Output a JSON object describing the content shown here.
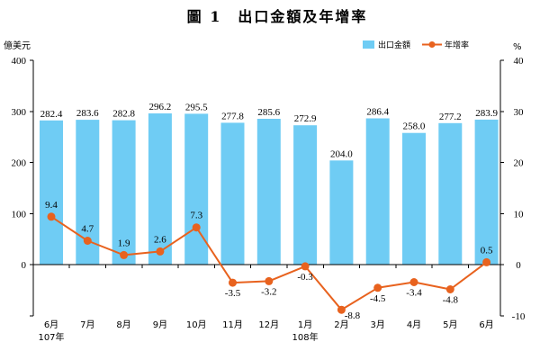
{
  "chart_data": {
    "type": "bar",
    "title": "圖 1　出口金額及年增率",
    "categories": [
      "6月",
      "7月",
      "8月",
      "9月",
      "10月",
      "11月",
      "12月",
      "1月",
      "2月",
      "3月",
      "4月",
      "5月",
      "6月"
    ],
    "category_year_labels": [
      "107年",
      "",
      "",
      "",
      "",
      "",
      "",
      "108年",
      "",
      "",
      "",
      "",
      ""
    ],
    "series": [
      {
        "name": "出口金額",
        "type": "bar",
        "axis": "left",
        "color": "#6FCCF4",
        "values": [
          282.4,
          283.6,
          282.8,
          296.2,
          295.5,
          277.8,
          285.6,
          272.9,
          204.0,
          286.4,
          258.0,
          277.2,
          283.9
        ]
      },
      {
        "name": "年增率",
        "type": "line",
        "axis": "right",
        "color": "#E8621E",
        "values": [
          9.4,
          4.7,
          1.9,
          2.6,
          7.3,
          -3.5,
          -3.2,
          -0.3,
          -8.8,
          -4.5,
          -3.4,
          -4.8,
          0.5
        ]
      }
    ],
    "xlabel": "",
    "ylabel_left": "億美元",
    "ylabel_right": "%",
    "ylim_left": [
      -100,
      400
    ],
    "ylim_right": [
      -10,
      40
    ],
    "y_left_ticks": [
      400,
      300,
      200,
      100,
      0
    ],
    "y_right_ticks": [
      40,
      30,
      20,
      10,
      0,
      -10
    ],
    "grid": false,
    "legend_position": "top-right",
    "data_labels": true
  }
}
